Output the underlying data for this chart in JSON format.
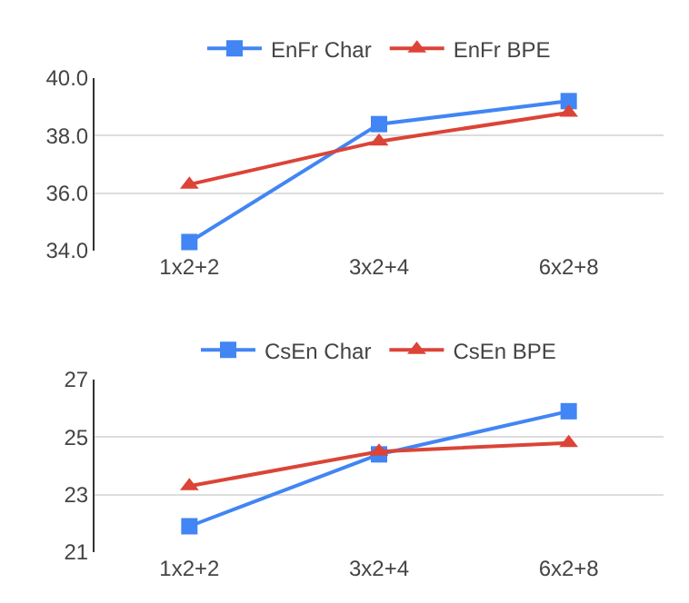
{
  "chart_data": [
    {
      "type": "line",
      "categories": [
        "1x2+2",
        "3x2+4",
        "6x2+8"
      ],
      "series": [
        {
          "name": "EnFr Char",
          "color": "#4285f4",
          "marker": "square",
          "values": [
            34.3,
            38.4,
            39.2
          ]
        },
        {
          "name": "EnFr BPE",
          "color": "#db4437",
          "marker": "triangle",
          "values": [
            36.3,
            37.8,
            38.8
          ]
        }
      ],
      "ylim": [
        34,
        40
      ],
      "yticks": [
        {
          "value": 34,
          "label": "34.0"
        },
        {
          "value": 36,
          "label": "36.0"
        },
        {
          "value": 38,
          "label": "38.0"
        },
        {
          "value": 40,
          "label": "40.0"
        }
      ],
      "grid": "y",
      "legend": "top"
    },
    {
      "type": "line",
      "categories": [
        "1x2+2",
        "3x2+4",
        "6x2+8"
      ],
      "series": [
        {
          "name": "CsEn Char",
          "color": "#4285f4",
          "marker": "square",
          "values": [
            21.9,
            24.4,
            25.9
          ]
        },
        {
          "name": "CsEn BPE",
          "color": "#db4437",
          "marker": "triangle",
          "values": [
            23.3,
            24.5,
            24.8
          ]
        }
      ],
      "ylim": [
        21,
        27
      ],
      "yticks": [
        21,
        23,
        25,
        27
      ],
      "grid": "y",
      "legend": "top"
    }
  ]
}
